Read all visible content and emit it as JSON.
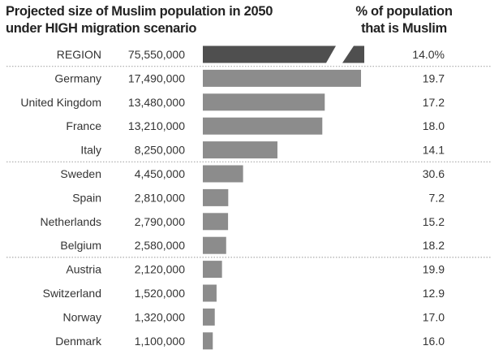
{
  "chart_data": {
    "type": "bar",
    "orientation": "horizontal",
    "title": "Projected size of Muslim population in 2050 under HIGH migration scenario",
    "title_lines": [
      "Projected size of Muslim population in 2050",
      "under HIGH migration scenario"
    ],
    "secondary_column_title_lines": [
      "% of population",
      "that is Muslim"
    ],
    "categories": [
      "REGION",
      "Germany",
      "United Kingdom",
      "France",
      "Italy",
      "Sweden",
      "Spain",
      "Netherlands",
      "Belgium",
      "Austria",
      "Switzerland",
      "Norway",
      "Denmark"
    ],
    "value_labels": [
      "75,550,000",
      "17,490,000",
      "13,480,000",
      "13,210,000",
      "8,250,000",
      "4,450,000",
      "2,810,000",
      "2,790,000",
      "2,580,000",
      "2,120,000",
      "1,520,000",
      "1,320,000",
      "1,100,000"
    ],
    "values": [
      75550000,
      17490000,
      13480000,
      13210000,
      8250000,
      4450000,
      2810000,
      2790000,
      2580000,
      2120000,
      1520000,
      1320000,
      1100000
    ],
    "percent_labels": [
      "14.0%",
      "19.7",
      "17.2",
      "18.0",
      "14.1",
      "30.6",
      "7.2",
      "15.2",
      "18.2",
      "19.9",
      "12.9",
      "17.0",
      "16.0"
    ],
    "percent_muslim": [
      14.0,
      19.7,
      17.2,
      18.0,
      14.1,
      30.6,
      7.2,
      15.2,
      18.2,
      19.9,
      12.9,
      17.0,
      16.0
    ],
    "broken_bar_category": "REGION",
    "group_separators_after": [
      "REGION",
      "Italy",
      "Belgium"
    ],
    "grid": false,
    "colors": {
      "bar": "#8c8c8c",
      "region_bar": "#4f4f4f",
      "separator": "#aaaaaa"
    }
  }
}
